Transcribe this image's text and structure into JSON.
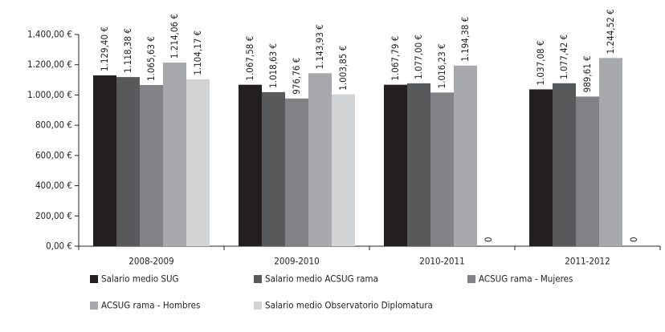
{
  "chart_data": {
    "type": "bar",
    "categories": [
      "2008-2009",
      "2009-2010",
      "2010-2011",
      "2011-2012"
    ],
    "series": [
      {
        "name": "Salario medio SUG",
        "color": "#231f20",
        "values": [
          1129.4,
          1067.58,
          1067.79,
          1037.08
        ],
        "value_labels": [
          "1.129,40 €",
          "1.067,58 €",
          "1.067,79 €",
          "1.037,08 €"
        ]
      },
      {
        "name": "Salario medio ACSUG rama",
        "color": "#58595b",
        "values": [
          1118.38,
          1018.63,
          1077.0,
          1077.42
        ],
        "value_labels": [
          "1.118,38 €",
          "1.018,63 €",
          "1.077,00 €",
          "1.077,42 €"
        ]
      },
      {
        "name": "ACSUG rama - Mujeres",
        "color": "#808285",
        "values": [
          1065.63,
          976.76,
          1016.23,
          989.61
        ],
        "value_labels": [
          "1.065,63 €",
          "976,76 €",
          "1.016,23 €",
          "989,61 €"
        ]
      },
      {
        "name": "ACSUG rama - Hombres",
        "color": "#a7a9ac",
        "values": [
          1214.06,
          1143.93,
          1194.38,
          1244.52
        ],
        "value_labels": [
          "1.214,06 €",
          "1.143,93 €",
          "1.194,38 €",
          "1.244,52 €"
        ]
      },
      {
        "name": "Salario medio Observatorio Diplomatura",
        "color": "#d1d3d4",
        "values": [
          1104.17,
          1003.85,
          0,
          0
        ],
        "value_labels": [
          "1.104,17 €",
          "1.003,85 €",
          "0",
          "0"
        ]
      }
    ],
    "ylim": [
      0,
      1400
    ],
    "yticks": [
      {
        "value": 0,
        "label": "0,00 €"
      },
      {
        "value": 200,
        "label": "200,00 €"
      },
      {
        "value": 400,
        "label": "400,00 €"
      },
      {
        "value": 600,
        "label": "600,00 €"
      },
      {
        "value": 800,
        "label": "800,00 €"
      },
      {
        "value": 1000,
        "label": "1.000,00 €"
      },
      {
        "value": 1200,
        "label": "1.200,00 €"
      },
      {
        "value": 1400,
        "label": "1.400,00 €"
      }
    ],
    "legend": "bottom"
  }
}
